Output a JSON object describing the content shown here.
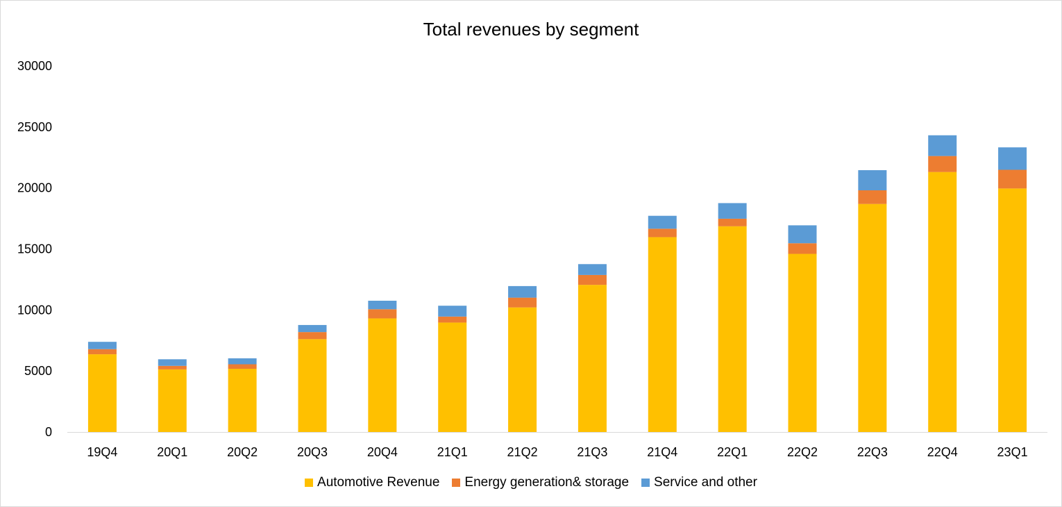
{
  "chart_data": {
    "type": "bar",
    "stacked": true,
    "title": "Total revenues by segment",
    "xlabel": "",
    "ylabel": "",
    "ylim": [
      0,
      30000
    ],
    "yticks": [
      0,
      5000,
      10000,
      15000,
      20000,
      25000,
      30000
    ],
    "grid": false,
    "legend_position": "bottom",
    "categories": [
      "19Q4",
      "20Q1",
      "20Q2",
      "20Q3",
      "20Q4",
      "21Q1",
      "21Q2",
      "21Q3",
      "21Q4",
      "22Q1",
      "22Q2",
      "22Q3",
      "22Q4",
      "23Q1"
    ],
    "series": [
      {
        "name": "Automotive Revenue",
        "color": "#FFC000",
        "values": [
          6370,
          5130,
          5180,
          7610,
          9310,
          8970,
          10210,
          12060,
          15970,
          16860,
          14600,
          18690,
          21310,
          19960
        ]
      },
      {
        "name": "Energy generation& storage",
        "color": "#ED7D31",
        "values": [
          420,
          290,
          370,
          580,
          750,
          490,
          800,
          810,
          690,
          620,
          870,
          1120,
          1310,
          1530
        ]
      },
      {
        "name": "Service and other",
        "color": "#5B9BD5",
        "values": [
          600,
          540,
          490,
          580,
          700,
          890,
          950,
          890,
          1060,
          1280,
          1470,
          1650,
          1700,
          1840
        ]
      }
    ]
  }
}
